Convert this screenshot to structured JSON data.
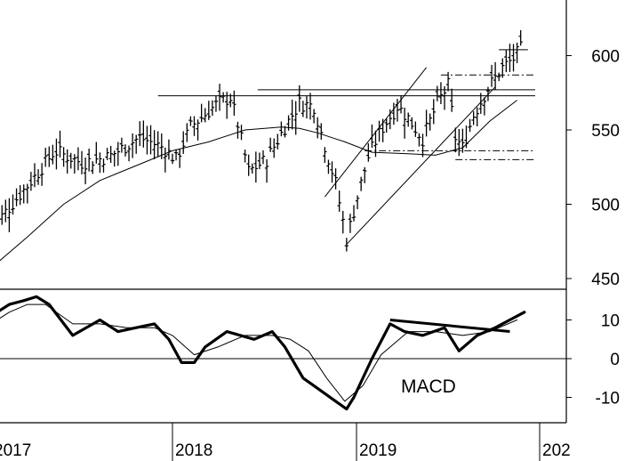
{
  "chart_data": [
    {
      "type": "ohlc",
      "panel": "price",
      "title": "",
      "ylabel": "",
      "xlabel": "",
      "x_tick_labels": [
        "2017",
        "2018",
        "2019",
        "202"
      ],
      "y_ticks": [
        450,
        500,
        550,
        600
      ],
      "ylim": [
        440,
        620
      ],
      "moving_average": "long-term moving average",
      "anchors": [
        {
          "x": 0,
          "y": 483
        },
        {
          "x": 0.25,
          "y": 520
        },
        {
          "x": 0.35,
          "y": 536
        },
        {
          "x": 0.5,
          "y": 528
        },
        {
          "x": 0.65,
          "y": 532
        },
        {
          "x": 0.82,
          "y": 545
        },
        {
          "x": 0.95,
          "y": 538
        },
        {
          "x": 1.02,
          "y": 530
        },
        {
          "x": 1.1,
          "y": 552
        },
        {
          "x": 1.25,
          "y": 568
        },
        {
          "x": 1.32,
          "y": 572
        },
        {
          "x": 1.36,
          "y": 554
        },
        {
          "x": 1.42,
          "y": 522
        },
        {
          "x": 1.52,
          "y": 530
        },
        {
          "x": 1.62,
          "y": 552
        },
        {
          "x": 1.7,
          "y": 568
        },
        {
          "x": 1.78,
          "y": 566
        },
        {
          "x": 1.82,
          "y": 548
        },
        {
          "x": 1.9,
          "y": 514
        },
        {
          "x": 1.96,
          "y": 476
        },
        {
          "x": 2.02,
          "y": 505
        },
        {
          "x": 2.08,
          "y": 532
        },
        {
          "x": 2.15,
          "y": 550
        },
        {
          "x": 2.24,
          "y": 566
        },
        {
          "x": 2.3,
          "y": 558
        },
        {
          "x": 2.38,
          "y": 544
        },
        {
          "x": 2.46,
          "y": 568
        },
        {
          "x": 2.52,
          "y": 580
        },
        {
          "x": 2.56,
          "y": 545
        },
        {
          "x": 2.6,
          "y": 538
        },
        {
          "x": 2.66,
          "y": 560
        },
        {
          "x": 2.74,
          "y": 578
        },
        {
          "x": 2.82,
          "y": 592
        },
        {
          "x": 2.88,
          "y": 598
        },
        {
          "x": 2.93,
          "y": 606
        }
      ],
      "ma_line": [
        {
          "x": 0,
          "y": 457
        },
        {
          "x": 0.2,
          "y": 478
        },
        {
          "x": 0.4,
          "y": 500
        },
        {
          "x": 0.6,
          "y": 516
        },
        {
          "x": 0.8,
          "y": 526
        },
        {
          "x": 1.0,
          "y": 536
        },
        {
          "x": 1.2,
          "y": 542
        },
        {
          "x": 1.4,
          "y": 550
        },
        {
          "x": 1.6,
          "y": 552
        },
        {
          "x": 1.7,
          "y": 551
        },
        {
          "x": 1.8,
          "y": 548
        },
        {
          "x": 1.95,
          "y": 542
        },
        {
          "x": 2.1,
          "y": 535
        },
        {
          "x": 2.3,
          "y": 534
        },
        {
          "x": 2.45,
          "y": 533
        },
        {
          "x": 2.6,
          "y": 538
        },
        {
          "x": 2.75,
          "y": 556
        },
        {
          "x": 2.9,
          "y": 570
        }
      ],
      "horizontal_lines": [
        {
          "y": 577,
          "x0": 1.47,
          "x1": 3.0,
          "style": "solid"
        },
        {
          "y": 573,
          "x0": 0.92,
          "x1": 3.0,
          "style": "solid"
        },
        {
          "y": 604,
          "x0": 2.8,
          "x1": 2.96,
          "style": "solid"
        },
        {
          "y": 587,
          "x0": 2.48,
          "x1": 3.0,
          "style": "dashdot"
        },
        {
          "y": 536,
          "x0": 2.06,
          "x1": 3.0,
          "style": "dashdot"
        },
        {
          "y": 530,
          "x0": 2.56,
          "x1": 3.0,
          "style": "dashdot"
        }
      ],
      "trend_lines": [
        {
          "x0": 1.84,
          "y0": 505,
          "x1": 2.4,
          "y1": 592
        },
        {
          "x0": 1.96,
          "y0": 473,
          "x1": 2.78,
          "y1": 579
        }
      ]
    },
    {
      "type": "line",
      "panel": "indicator",
      "title": "",
      "annotation": "MACD",
      "xlabel": "",
      "ylabel": "",
      "y_ticks": [
        -10,
        0,
        10
      ],
      "ylim": [
        -17,
        18
      ],
      "series": [
        {
          "role": "macd",
          "x": [
            0,
            0.1,
            0.18,
            0.25,
            0.32,
            0.45,
            0.6,
            0.7,
            0.8,
            0.9,
            0.98,
            1.05,
            1.12,
            1.18,
            1.3,
            1.45,
            1.55,
            1.62,
            1.72,
            1.78,
            1.9,
            1.96,
            2.0,
            2.1,
            2.2,
            2.28,
            2.38,
            2.5,
            2.58,
            2.68,
            2.78,
            2.86,
            2.94
          ],
          "values": [
            11,
            14,
            15,
            16,
            14,
            6,
            10,
            7,
            8,
            9,
            5,
            -1,
            -1,
            3,
            7,
            5,
            7,
            3,
            -5,
            -7,
            -11,
            -13,
            -10,
            0,
            9,
            7,
            6,
            8,
            2,
            6,
            8,
            10,
            12
          ]
        },
        {
          "role": "signal",
          "x": [
            0,
            0.1,
            0.2,
            0.3,
            0.45,
            0.6,
            0.75,
            0.9,
            1.0,
            1.12,
            1.25,
            1.4,
            1.55,
            1.65,
            1.75,
            1.85,
            1.95,
            2.05,
            2.15,
            2.3,
            2.45,
            2.6,
            2.75,
            2.9
          ],
          "values": [
            9,
            12,
            14,
            14,
            9,
            9,
            8,
            8,
            6,
            1,
            3,
            6,
            6,
            5,
            2,
            -5,
            -11,
            -7,
            1,
            7,
            7,
            6,
            7,
            10
          ]
        }
      ],
      "horizontal_lines": [
        {
          "y": 0
        }
      ],
      "trend_lines": [
        {
          "x0": 2.2,
          "y0": 10,
          "x1": 2.86,
          "y1": 7
        }
      ]
    }
  ]
}
